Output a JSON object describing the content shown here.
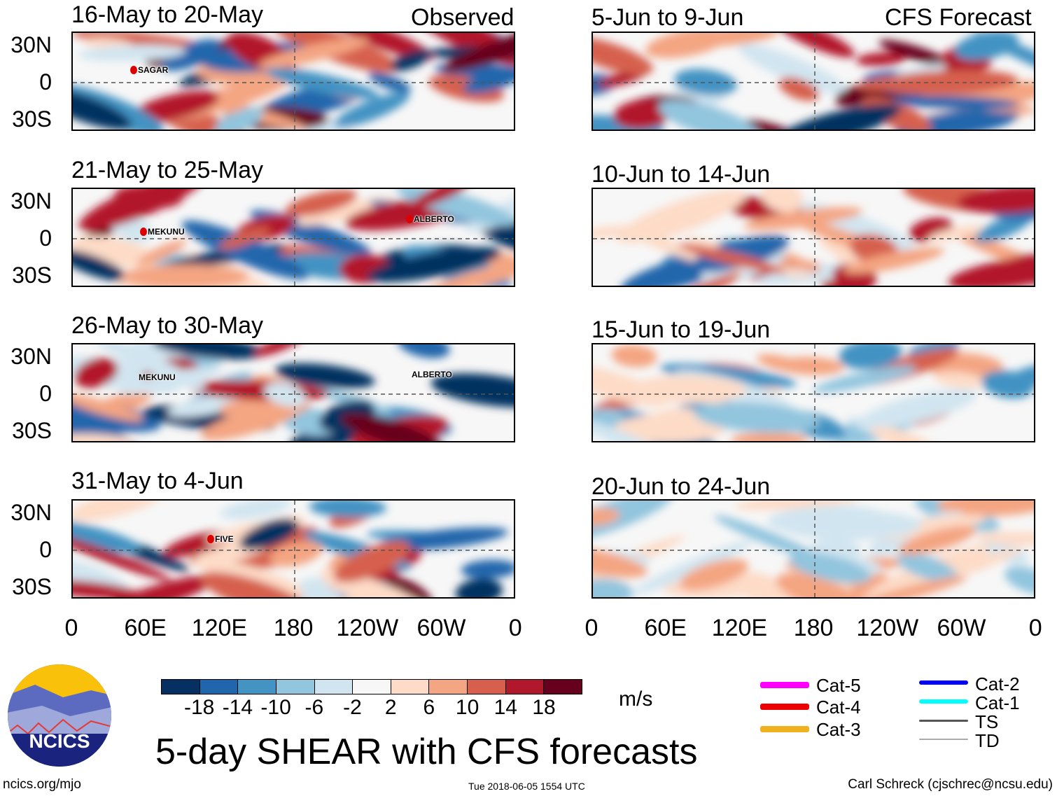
{
  "observed_label": "Observed",
  "forecast_label": "CFS Forecast",
  "lat_labels": [
    "30N",
    "0",
    "30S"
  ],
  "lon_labels": [
    "0",
    "60E",
    "120E",
    "180",
    "120W",
    "60W",
    "0"
  ],
  "panels": [
    {
      "title": "16-May to 20-May",
      "type": "observed",
      "storms": [
        {
          "name": "SAGAR",
          "marker": true
        }
      ]
    },
    {
      "title": "21-May to 25-May",
      "type": "observed",
      "storms": [
        {
          "name": "MEKUNU",
          "marker": true
        },
        {
          "name": "ALBERTO",
          "marker": true
        }
      ]
    },
    {
      "title": "26-May to 30-May",
      "type": "observed",
      "storms": [
        {
          "name": "MEKUNU",
          "marker": false
        },
        {
          "name": "ALBERTO",
          "marker": false
        }
      ]
    },
    {
      "title": "31-May to 4-Jun",
      "type": "observed",
      "storms": [
        {
          "name": "FIVE",
          "marker": true
        }
      ]
    },
    {
      "title": "5-Jun to 9-Jun",
      "type": "forecast",
      "storms": []
    },
    {
      "title": "10-Jun to 14-Jun",
      "type": "forecast",
      "storms": []
    },
    {
      "title": "15-Jun to 19-Jun",
      "type": "forecast",
      "storms": []
    },
    {
      "title": "20-Jun to 24-Jun",
      "type": "forecast",
      "storms": []
    }
  ],
  "colorbar": {
    "colors": [
      "#053061",
      "#2166ac",
      "#4393c3",
      "#92c5de",
      "#d1e5f0",
      "#f7f7f7",
      "#fddbc7",
      "#f4a582",
      "#d6604d",
      "#b2182b",
      "#67001f"
    ],
    "labels": [
      "-18",
      "-14",
      "-10",
      "-6",
      "-2",
      "2",
      "6",
      "10",
      "14",
      "18"
    ],
    "units": "m/s"
  },
  "legend": [
    {
      "label": "Cat-5",
      "color": "#ff00ff"
    },
    {
      "label": "Cat-4",
      "color": "#ee0000"
    },
    {
      "label": "Cat-3",
      "color": "#f0b020"
    },
    {
      "label": "Cat-2",
      "color": "#0000ee"
    },
    {
      "label": "Cat-1",
      "color": "#00ffff"
    },
    {
      "label": "TS",
      "color": "#555555"
    },
    {
      "label": "TD",
      "color": "#aaaaaa"
    }
  ],
  "logo_text": "NCICS",
  "main_title": "5-day SHEAR with CFS forecasts",
  "footer": {
    "left": "ncics.org/mjo",
    "center": "Tue 2018-06-05 1554 UTC",
    "right": "Carl Schreck (cjschrec@ncsu.edu)"
  }
}
